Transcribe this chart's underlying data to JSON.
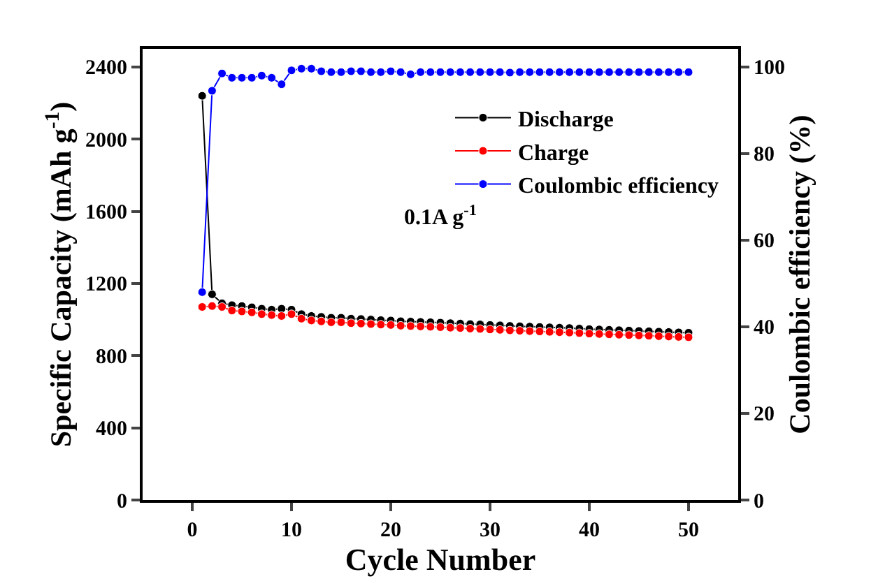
{
  "chart_data": {
    "type": "line",
    "xlabel": "Cycle Number",
    "ylabel": "Specific Capacity (mAh g$^{-1}$)",
    "y2label": "Coulombic efficiency (%)",
    "x": [
      1,
      2,
      3,
      4,
      5,
      6,
      7,
      8,
      9,
      10,
      11,
      12,
      13,
      14,
      15,
      16,
      17,
      18,
      19,
      20,
      21,
      22,
      23,
      24,
      25,
      26,
      27,
      28,
      29,
      30,
      31,
      32,
      33,
      34,
      35,
      36,
      37,
      38,
      39,
      40,
      41,
      42,
      43,
      44,
      45,
      46,
      47,
      48,
      49,
      50
    ],
    "series": [
      {
        "name": "Discharge",
        "color": "#000000",
        "values": [
          2240,
          1140,
          1090,
          1080,
          1075,
          1068,
          1060,
          1055,
          1060,
          1055,
          1030,
          1020,
          1015,
          1010,
          1010,
          1005,
          1003,
          1000,
          997,
          995,
          991,
          989,
          987,
          985,
          983,
          980,
          978,
          975,
          973,
          970,
          968,
          965,
          963,
          961,
          959,
          957,
          955,
          953,
          950,
          947,
          945,
          943,
          941,
          939,
          937,
          935,
          933,
          931,
          929,
          927
        ]
      },
      {
        "name": "Charge",
        "color": "#ff0000",
        "values": [
          1070,
          1075,
          1070,
          1050,
          1045,
          1040,
          1030,
          1025,
          1020,
          1030,
          1005,
          995,
          990,
          985,
          985,
          980,
          978,
          975,
          972,
          970,
          966,
          964,
          962,
          960,
          958,
          955,
          953,
          950,
          948,
          945,
          943,
          940,
          938,
          936,
          934,
          932,
          930,
          928,
          925,
          922,
          920,
          918,
          916,
          914,
          912,
          910,
          908,
          906,
          904,
          902
        ]
      },
      {
        "name": "Coulombic efficiency",
        "color": "#0000ff",
        "axis": "y2",
        "values": [
          48,
          94.5,
          98.5,
          97.5,
          97.5,
          97.5,
          98,
          97.5,
          96,
          99.2,
          99.6,
          99.6,
          99,
          98.8,
          98.8,
          99,
          99,
          98.8,
          98.8,
          99,
          98.8,
          98.3,
          98.8,
          98.8,
          98.8,
          98.8,
          98.8,
          98.8,
          98.8,
          98.8,
          98.8,
          98.7,
          98.8,
          98.8,
          98.8,
          98.8,
          98.8,
          98.8,
          98.8,
          98.8,
          98.8,
          98.8,
          98.8,
          98.8,
          98.8,
          98.8,
          98.8,
          98.8,
          98.8,
          98.8
        ]
      }
    ],
    "xlim": [
      -5,
      55
    ],
    "xticks": [
      0,
      10,
      20,
      30,
      40,
      50
    ],
    "ylim": [
      0,
      2500
    ],
    "yticks": [
      0,
      400,
      800,
      1200,
      1600,
      2000,
      2400
    ],
    "y2lim": [
      0,
      104.17
    ],
    "y2ticks": [
      0,
      20,
      40,
      60,
      80,
      100
    ],
    "annotations": [
      "0.1A g$^{-1}$"
    ],
    "legend": "top right",
    "marker": "circle",
    "line_style": "solid"
  }
}
